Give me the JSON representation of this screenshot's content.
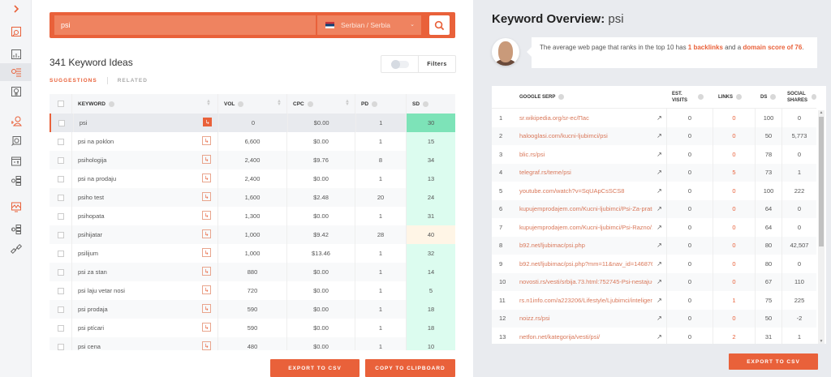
{
  "sidebar": {
    "expand_icon": "chevron-right",
    "items": [
      {
        "name": "site-audit",
        "active": false,
        "color": "#e9613a"
      },
      {
        "name": "traffic-analyzer",
        "active": false,
        "color": "#666"
      },
      {
        "name": "keyword-ideas",
        "active": true,
        "color": "#e9613a"
      },
      {
        "name": "content-ideas",
        "active": false,
        "color": "#666"
      },
      {
        "name": "competitor-analysis",
        "active": false,
        "color": "#e9613a"
      },
      {
        "name": "seo-analyzer",
        "active": false,
        "color": "#666"
      },
      {
        "name": "top-pages",
        "active": false,
        "color": "#666"
      },
      {
        "name": "keywords-by-site",
        "active": false,
        "color": "#666"
      },
      {
        "name": "rank-tracking",
        "active": false,
        "color": "#e9613a"
      },
      {
        "name": "backlinks-list",
        "active": false,
        "color": "#666"
      },
      {
        "name": "backlinks",
        "active": false,
        "color": "#666"
      }
    ]
  },
  "search": {
    "query": "psi",
    "language": "Serbian / Serbia"
  },
  "keywords": {
    "title": "341 Keyword Ideas",
    "tabs": {
      "suggestions": "SUGGESTIONS",
      "related": "RELATED"
    },
    "filters_label": "Filters",
    "columns": {
      "keyword": "KEYWORD",
      "vol": "VOL",
      "cpc": "CPC",
      "pd": "PD",
      "sd": "SD"
    },
    "rows": [
      {
        "keyword": "psi",
        "vol": "0",
        "cpc": "$0.00",
        "pd": "1",
        "sd": "30"
      },
      {
        "keyword": "psi na poklon",
        "vol": "6,600",
        "cpc": "$0.00",
        "pd": "1",
        "sd": "15"
      },
      {
        "keyword": "psihologija",
        "vol": "2,400",
        "cpc": "$9.76",
        "pd": "8",
        "sd": "34"
      },
      {
        "keyword": "psi na prodaju",
        "vol": "2,400",
        "cpc": "$0.00",
        "pd": "1",
        "sd": "13"
      },
      {
        "keyword": "psiho test",
        "vol": "1,600",
        "cpc": "$2.48",
        "pd": "20",
        "sd": "24"
      },
      {
        "keyword": "psihopata",
        "vol": "1,300",
        "cpc": "$0.00",
        "pd": "1",
        "sd": "31"
      },
      {
        "keyword": "psihijatar",
        "vol": "1,000",
        "cpc": "$9.42",
        "pd": "28",
        "sd": "40"
      },
      {
        "keyword": "psilijum",
        "vol": "1,000",
        "cpc": "$13.46",
        "pd": "1",
        "sd": "32"
      },
      {
        "keyword": "psi za stan",
        "vol": "880",
        "cpc": "$0.00",
        "pd": "1",
        "sd": "14"
      },
      {
        "keyword": "psi laju vetar nosi",
        "vol": "720",
        "cpc": "$0.00",
        "pd": "1",
        "sd": "5"
      },
      {
        "keyword": "psi prodaja",
        "vol": "590",
        "cpc": "$0.00",
        "pd": "1",
        "sd": "18"
      },
      {
        "keyword": "psi ptícari",
        "vol": "590",
        "cpc": "$0.00",
        "pd": "1",
        "sd": "18"
      },
      {
        "keyword": "psi cena",
        "vol": "480",
        "cpc": "$0.00",
        "pd": "1",
        "sd": "10"
      }
    ],
    "export_label": "EXPORT TO CSV",
    "copy_label": "COPY TO CLIPBOARD",
    "sd_colors": {
      "selected": "#7de3b8",
      "low": "#dcfcef",
      "medium": "#fff5e6"
    }
  },
  "overview": {
    "title_prefix": "Keyword Overview:",
    "keyword": "psi",
    "summary_pre": "The average web page that ranks in the top 10 has ",
    "summary_backlinks": "1 backlinks",
    "summary_mid": " and a ",
    "summary_score": "domain score of 76",
    "summary_end": ".",
    "columns": {
      "serp": "GOOGLE SERP",
      "visits": "EST. VISITS",
      "links": "LINKS",
      "ds": "DS",
      "shares": "SOCIAL SHARES"
    },
    "rows": [
      {
        "n": "1",
        "url": "sr.wikipedia.org/sr-ec/Пас",
        "visits": "0",
        "links": "0",
        "ds": "100",
        "shares": "0"
      },
      {
        "n": "2",
        "url": "halooglasi.com/kucni-ljubimci/psi",
        "visits": "0",
        "links": "0",
        "ds": "50",
        "shares": "5,773"
      },
      {
        "n": "3",
        "url": "blic.rs/psi",
        "visits": "0",
        "links": "0",
        "ds": "78",
        "shares": "0"
      },
      {
        "n": "4",
        "url": "telegraf.rs/teme/psi",
        "visits": "0",
        "links": "5",
        "ds": "73",
        "shares": "1"
      },
      {
        "n": "5",
        "url": "youtube.com/watch?v=SqUApCsSCS8",
        "visits": "0",
        "links": "0",
        "ds": "100",
        "shares": "222"
      },
      {
        "n": "6",
        "url": "kupujemprodajem.com/Kucni-ljubimci/Psi-Za-pratnj...",
        "visits": "0",
        "links": "0",
        "ds": "64",
        "shares": "0"
      },
      {
        "n": "7",
        "url": "kupujemprodajem.com/Kucni-ljubimci/Psi-Razno/14...",
        "visits": "0",
        "links": "0",
        "ds": "64",
        "shares": "0"
      },
      {
        "n": "8",
        "url": "b92.net/ljubimac/psi.php",
        "visits": "0",
        "links": "0",
        "ds": "80",
        "shares": "42,507"
      },
      {
        "n": "9",
        "url": "b92.net/ljubimac/psi.php?mm=11&nav_id=14687698...",
        "visits": "0",
        "links": "0",
        "ds": "80",
        "shares": "0"
      },
      {
        "n": "10",
        "url": "novosti.rs/vesti/srbija.73.html:752745-Psi-nestaju-bez...",
        "visits": "0",
        "links": "0",
        "ds": "67",
        "shares": "110"
      },
      {
        "n": "11",
        "url": "rs.n1info.com/a223206/Lifestyle/Ljubimci/inteligencij...",
        "visits": "0",
        "links": "1",
        "ds": "75",
        "shares": "225"
      },
      {
        "n": "12",
        "url": "noizz.rs/psi",
        "visits": "0",
        "links": "0",
        "ds": "50",
        "shares": "-2"
      },
      {
        "n": "13",
        "url": "netfon.net/kategorija/vesti/psi/",
        "visits": "0",
        "links": "2",
        "ds": "31",
        "shares": "1"
      }
    ],
    "export_label": "EXPORT TO CSV"
  },
  "colors": {
    "accent": "#e9613a",
    "panel_bg": "#e9ebef"
  }
}
